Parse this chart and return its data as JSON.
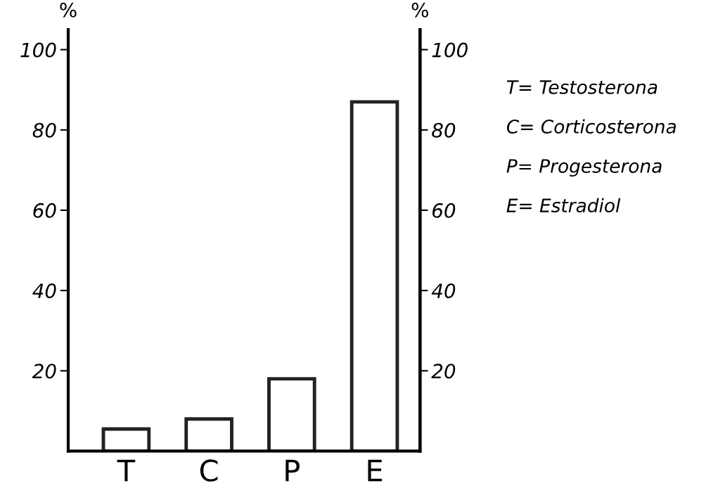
{
  "chart_data": {
    "type": "bar",
    "ylabel": "%",
    "y2label": "%",
    "categories": [
      "T",
      "C",
      "P",
      "E"
    ],
    "values": [
      5.5,
      8,
      18,
      87
    ],
    "color": "#ffffff",
    "ylim": [
      0,
      105
    ],
    "yticks": [
      20,
      40,
      60,
      80,
      100
    ],
    "y2lim": [
      0,
      105
    ],
    "y2ticks": [
      20,
      40,
      60,
      80,
      100
    ],
    "grid": false,
    "annotations": [
      "T= Testosterona",
      "C= Corticosterona",
      "P= Progesterona",
      "E= Estradiol"
    ]
  }
}
